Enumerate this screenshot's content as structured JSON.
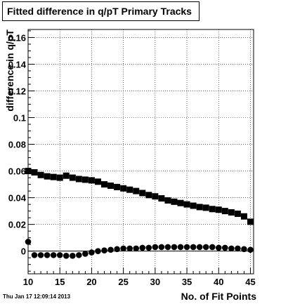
{
  "timestamp": "Thu Jan 17 12:09:14 2013",
  "chart_data": {
    "type": "scatter",
    "title": "Fitted difference in q/pT Primary Tracks",
    "xlabel": "No. of Fit Points",
    "ylabel": "difference in q/pT",
    "xlim": [
      10,
      45.5
    ],
    "ylim": [
      -0.017,
      0.166
    ],
    "xticks": [
      10,
      15,
      20,
      25,
      30,
      35,
      40,
      45
    ],
    "yticks": [
      0,
      0.02,
      0.04,
      0.06,
      0.08,
      0.1,
      0.12,
      0.14,
      0.16
    ],
    "ytick_labels": [
      "0",
      "0.02",
      "0.04",
      "0.06",
      "0.08",
      "0.1",
      "0.12",
      "0.14",
      "0.16"
    ],
    "grid": true,
    "series": [
      {
        "marker": "square",
        "x": [
          10,
          11,
          12,
          13,
          14,
          15,
          16,
          17,
          18,
          19,
          20,
          21,
          22,
          23,
          24,
          25,
          26,
          27,
          28,
          29,
          30,
          31,
          32,
          33,
          34,
          35,
          36,
          37,
          38,
          39,
          40,
          41,
          42,
          43,
          44,
          45
        ],
        "y": [
          0.06,
          0.059,
          0.057,
          0.056,
          0.0555,
          0.055,
          0.0565,
          0.055,
          0.054,
          0.0535,
          0.053,
          0.052,
          0.05,
          0.049,
          0.048,
          0.047,
          0.046,
          0.045,
          0.0435,
          0.042,
          0.041,
          0.0395,
          0.038,
          0.037,
          0.036,
          0.035,
          0.034,
          0.033,
          0.0325,
          0.0315,
          0.031,
          0.03,
          0.029,
          0.028,
          0.026,
          0.022
        ]
      },
      {
        "marker": "circle",
        "x": [
          10,
          11,
          12,
          13,
          14,
          15,
          16,
          17,
          18,
          19,
          20,
          21,
          22,
          23,
          24,
          25,
          26,
          27,
          28,
          29,
          30,
          31,
          32,
          33,
          34,
          35,
          36,
          37,
          38,
          39,
          40,
          41,
          42,
          43,
          44,
          45
        ],
        "y": [
          0.007,
          -0.003,
          -0.003,
          -0.003,
          -0.003,
          -0.003,
          -0.0035,
          -0.0035,
          -0.003,
          -0.002,
          -0.001,
          0.0,
          0.0005,
          0.001,
          0.0015,
          0.002,
          0.002,
          0.002,
          0.0025,
          0.0025,
          0.003,
          0.003,
          0.003,
          0.003,
          0.003,
          0.003,
          0.003,
          0.003,
          0.003,
          0.003,
          0.0025,
          0.0025,
          0.002,
          0.002,
          0.0015,
          0.001
        ]
      }
    ]
  }
}
